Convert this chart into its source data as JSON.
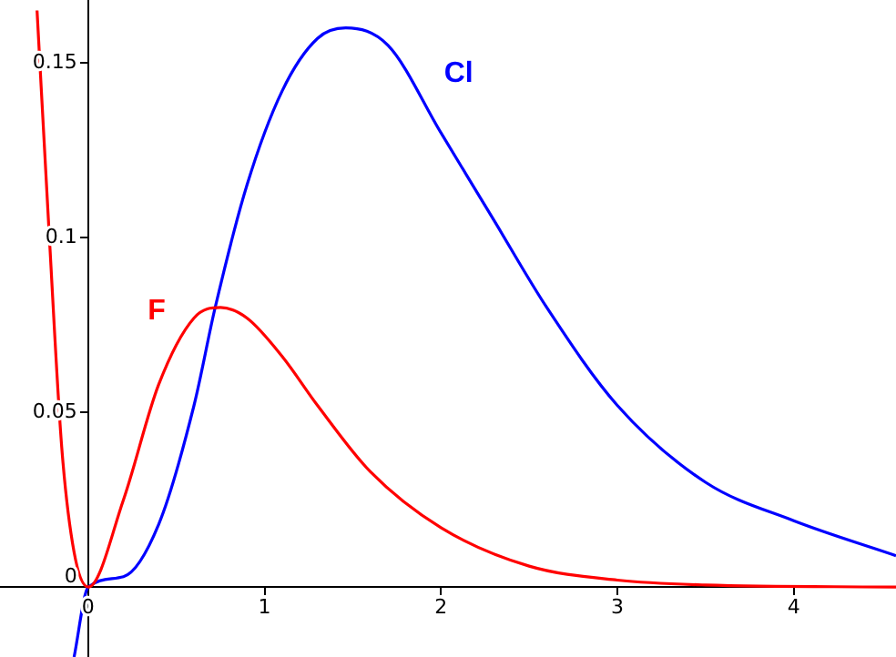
{
  "chart_data": {
    "type": "line",
    "xlim": [
      -0.5,
      4.58
    ],
    "ylim": [
      -0.02,
      0.168
    ],
    "xticks": [
      0,
      1,
      2,
      3,
      4
    ],
    "yticks": [
      0,
      0.05,
      0.1,
      0.15
    ],
    "grid": false,
    "legend": false,
    "marker": "none",
    "line_style": "solid",
    "series": [
      {
        "name": "F",
        "color": "#ff0000",
        "x": [
          -0.29,
          -0.22,
          -0.15,
          -0.08,
          0,
          0.2,
          0.4,
          0.6,
          0.75,
          0.9,
          1.1,
          1.3,
          1.6,
          2.0,
          2.5,
          3.0,
          3.5,
          4.58
        ],
        "values": [
          0.165,
          0.1,
          0.04,
          0.01,
          0,
          0.025,
          0.058,
          0.077,
          0.08,
          0.077,
          0.066,
          0.052,
          0.033,
          0.017,
          0.006,
          0.002,
          0.0006,
          0
        ]
      },
      {
        "name": "Cl",
        "color": "#0000ff",
        "x": [
          -0.08,
          0,
          0.2,
          0.4,
          0.6,
          0.72,
          0.9,
          1.1,
          1.3,
          1.46,
          1.7,
          2.0,
          2.3,
          2.6,
          3.0,
          3.5,
          4.0,
          4.58
        ],
        "values": [
          -0.02,
          0,
          0.003,
          0.018,
          0.052,
          0.08,
          0.115,
          0.142,
          0.157,
          0.16,
          0.155,
          0.13,
          0.105,
          0.08,
          0.052,
          0.03,
          0.019,
          0.009
        ]
      }
    ]
  }
}
